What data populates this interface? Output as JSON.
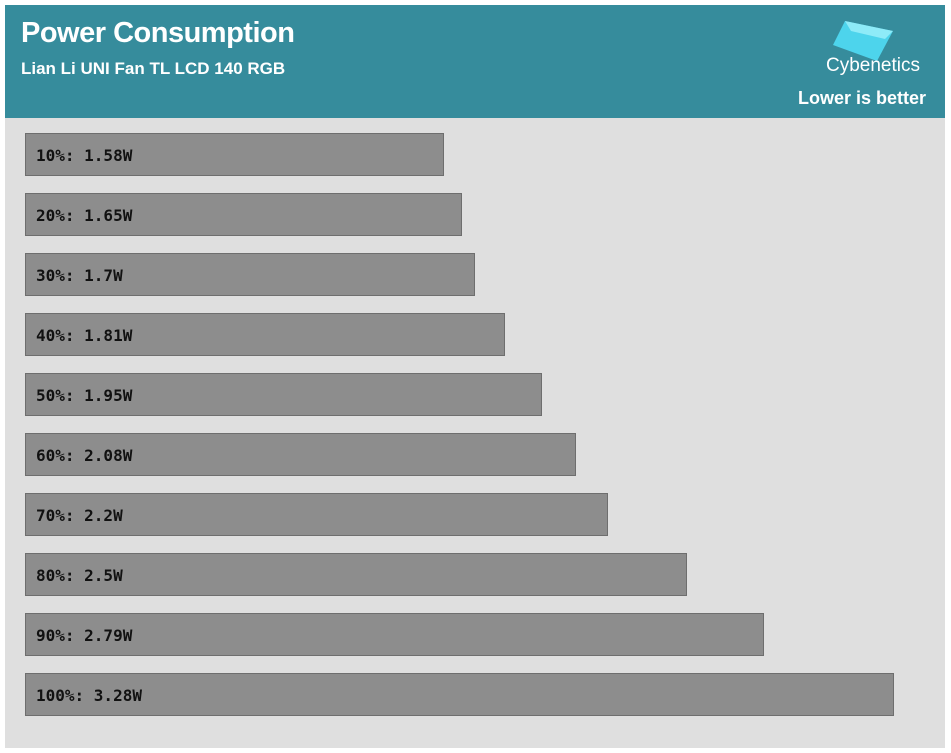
{
  "header": {
    "title": "Power Consumption",
    "subtitle": "Lian Li UNI Fan TL LCD 140 RGB",
    "brand": "Cybenetics",
    "note": "Lower is better"
  },
  "colors": {
    "header_bg": "#368c9c",
    "plot_bg": "#dfdfdf",
    "bar_fill": "#8d8d8d",
    "logo_cyan": "#4fd8f0"
  },
  "chart_data": {
    "type": "bar",
    "orientation": "horizontal",
    "title": "Power Consumption",
    "subtitle": "Lian Li UNI Fan TL LCD 140 RGB",
    "categories": [
      "10%",
      "20%",
      "30%",
      "40%",
      "50%",
      "60%",
      "70%",
      "80%",
      "90%",
      "100%"
    ],
    "values": [
      1.58,
      1.65,
      1.7,
      1.81,
      1.95,
      2.08,
      2.2,
      2.5,
      2.79,
      3.28
    ],
    "labels": [
      "10%: 1.58W",
      "20%: 1.65W",
      "30%: 1.7W",
      "40%: 1.81W",
      "50%: 1.95W",
      "60%: 2.08W",
      "70%: 2.2W",
      "80%: 2.5W",
      "90%: 2.79W",
      "100%: 3.28W"
    ],
    "unit": "W",
    "note": "Lower is better",
    "xlim": [
      0,
      3.28
    ],
    "grid": false,
    "legend": "none"
  }
}
